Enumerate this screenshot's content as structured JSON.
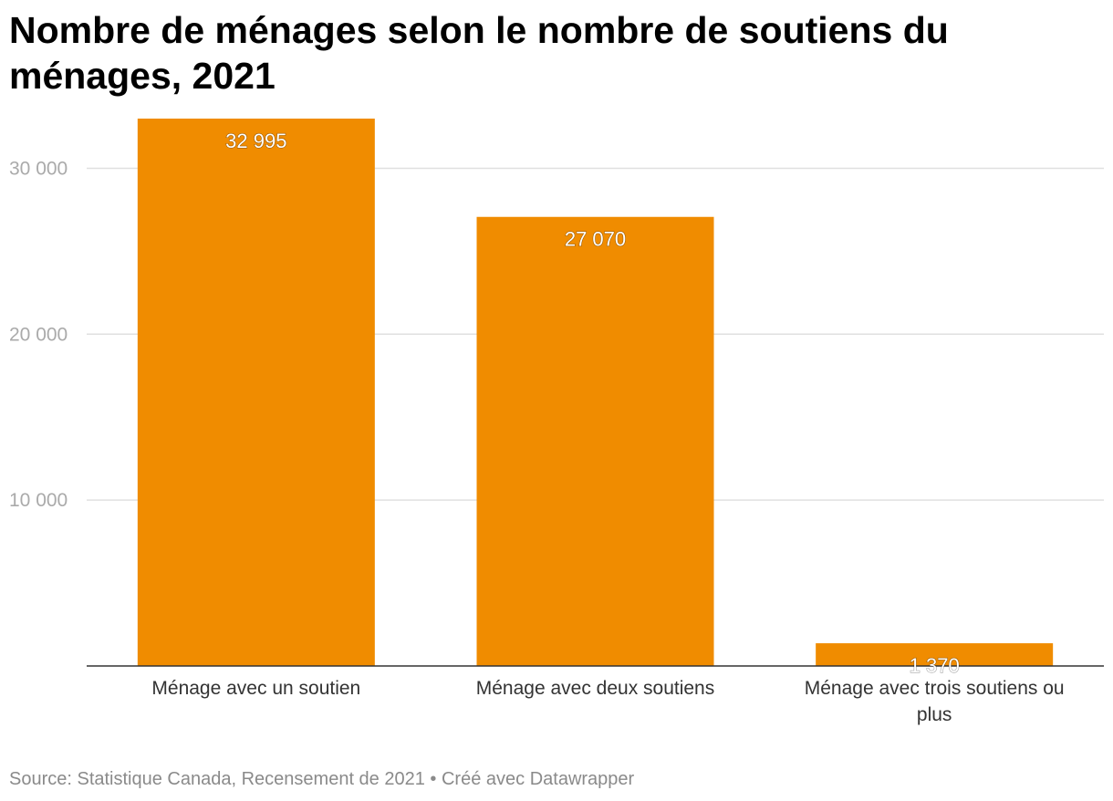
{
  "title": "Nombre de ménages selon le nombre de soutiens du ménages, 2021",
  "footer": {
    "source": "Source: Statistique Canada, Recensement de 2021",
    "separator": " • ",
    "credit": "Créé avec Datawrapper"
  },
  "chart_data": {
    "type": "bar",
    "categories": [
      "Ménage avec un soutien",
      "Ménage avec deux soutiens",
      "Ménage avec trois soutiens ou plus"
    ],
    "values": [
      32995,
      27070,
      1370
    ],
    "value_labels": [
      "32 995",
      "27 070",
      "1 370"
    ],
    "yticks": [
      10000,
      20000,
      30000
    ],
    "ytick_labels": [
      "10 000",
      "20 000",
      "30 000"
    ],
    "ylim": [
      0,
      32995
    ],
    "grid": true,
    "colors": {
      "bar": "#F08C00",
      "grid": "#e0e0e0",
      "axis": "#333333",
      "tick_text": "#aaaaaa"
    }
  }
}
